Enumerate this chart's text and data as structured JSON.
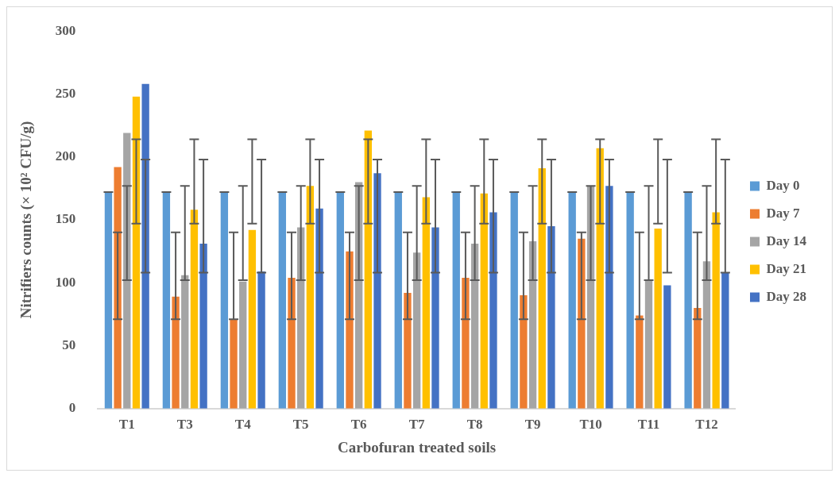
{
  "chart_data": {
    "type": "bar",
    "xlabel": "Carbofuran treated soils",
    "ylabel": "Nitrifiers counts (× 10² CFU/g)",
    "categories": [
      "T1",
      "T3",
      "T4",
      "T5",
      "T6",
      "T7",
      "T8",
      "T9",
      "T10",
      "T11",
      "T12"
    ],
    "ylim": [
      0,
      300
    ],
    "yticks": [
      0,
      50,
      100,
      150,
      200,
      250,
      300
    ],
    "grid": false,
    "legend": "right",
    "series": [
      {
        "name": "Day 0",
        "color": "#5b9bd5",
        "values": [
          172,
          172,
          172,
          172,
          172,
          172,
          172,
          172,
          172,
          172,
          172
        ],
        "errors": [
          0,
          0,
          0,
          0,
          0,
          0,
          0,
          0,
          0,
          0,
          0
        ]
      },
      {
        "name": "Day 7",
        "color": "#ed7d31",
        "values": [
          192,
          89,
          71,
          104,
          125,
          92,
          104,
          90,
          135,
          74,
          80
        ],
        "errors": [
          [
            71,
            140
          ],
          [
            71,
            140
          ],
          [
            71,
            140
          ],
          [
            71,
            140
          ],
          [
            71,
            140
          ],
          [
            71,
            140
          ],
          [
            71,
            140
          ],
          [
            71,
            140
          ],
          [
            71,
            140
          ],
          [
            71,
            140
          ],
          [
            71,
            140
          ]
        ]
      },
      {
        "name": "Day 14",
        "color": "#a5a5a5",
        "values": [
          219,
          106,
          101,
          144,
          180,
          124,
          131,
          133,
          177,
          102,
          117
        ],
        "errors": [
          [
            102,
            177
          ],
          [
            102,
            177
          ],
          [
            102,
            177
          ],
          [
            102,
            177
          ],
          [
            102,
            177
          ],
          [
            102,
            177
          ],
          [
            102,
            177
          ],
          [
            102,
            177
          ],
          [
            102,
            177
          ],
          [
            102,
            177
          ],
          [
            102,
            177
          ]
        ]
      },
      {
        "name": "Day 21",
        "color": "#ffc000",
        "values": [
          248,
          158,
          142,
          177,
          221,
          168,
          171,
          191,
          207,
          143,
          156
        ],
        "errors": [
          [
            147,
            214
          ],
          [
            147,
            214
          ],
          [
            147,
            214
          ],
          [
            147,
            214
          ],
          [
            147,
            214
          ],
          [
            147,
            214
          ],
          [
            147,
            214
          ],
          [
            147,
            214
          ],
          [
            147,
            214
          ],
          [
            147,
            214
          ],
          [
            147,
            214
          ]
        ]
      },
      {
        "name": "Day 28",
        "color": "#4472c4",
        "values": [
          258,
          131,
          109,
          159,
          187,
          144,
          156,
          145,
          177,
          98,
          108
        ],
        "errors": [
          [
            108,
            198
          ],
          [
            108,
            198
          ],
          [
            108,
            198
          ],
          [
            108,
            198
          ],
          [
            108,
            198
          ],
          [
            108,
            198
          ],
          [
            108,
            198
          ],
          [
            108,
            198
          ],
          [
            108,
            198
          ],
          [
            108,
            198
          ],
          [
            108,
            198
          ]
        ]
      }
    ]
  }
}
